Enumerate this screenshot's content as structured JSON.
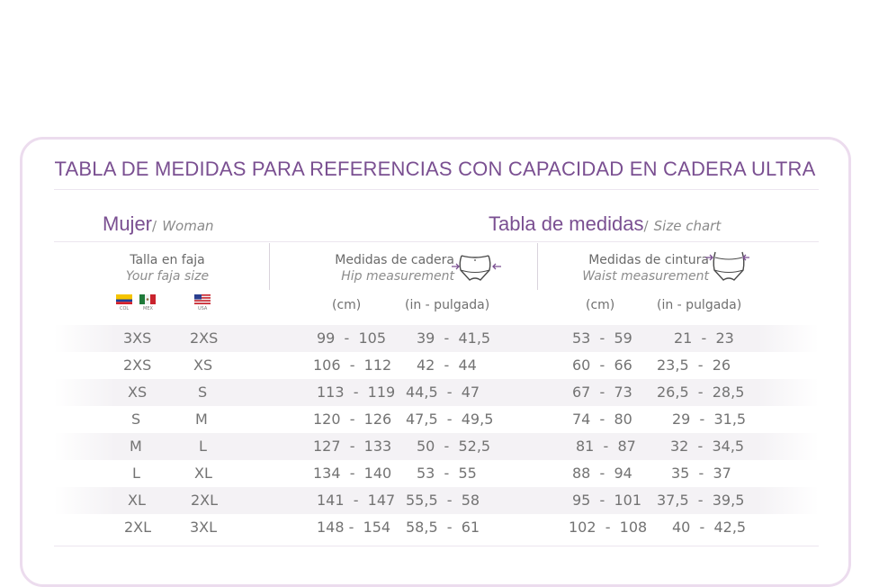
{
  "title": "TABLA DE MEDIDAS PARA REFERENCIAS CON CAPACIDAD EN CADERA ULTRA",
  "left_section": {
    "main": "Mujer",
    "sep": "/",
    "sub": "Woman"
  },
  "right_section": {
    "main": "Tabla de medidas",
    "sep": "/",
    "sub": "Size chart"
  },
  "columns": {
    "size": {
      "es": "Talla en faja",
      "en": "Your faja size"
    },
    "hip": {
      "es": "Medidas de cadera",
      "en": "Hip measurement"
    },
    "waist": {
      "es": "Medidas de cintura",
      "en": "Waist measurement"
    }
  },
  "flags": {
    "col": "COL",
    "mex": "MEX",
    "usa": "USA"
  },
  "units": {
    "hip_cm": "(cm)",
    "hip_in": "(in - pulgada)",
    "waist_cm": "(cm)",
    "waist_in": "(in - pulgada)"
  },
  "rows": [
    {
      "col": "3XS",
      "usa": "2XS",
      "hip_cm": "99  -  105",
      "hip_in": "39  -  41,5",
      "waist_cm": "53  -  59",
      "waist_in": "21  -  23"
    },
    {
      "col": "2XS",
      "usa": "XS",
      "hip_cm": "106  -  112",
      "hip_in": "42  -  44",
      "waist_cm": "60  -  66",
      "waist_in": "23,5  -  26"
    },
    {
      "col": "XS",
      "usa": "S",
      "hip_cm": "113  -  119",
      "hip_in": "44,5  -  47",
      "waist_cm": "67  -  73",
      "waist_in": "26,5  -  28,5"
    },
    {
      "col": "S",
      "usa": "M",
      "hip_cm": "120  -  126",
      "hip_in": "47,5  -  49,5",
      "waist_cm": "74  -  80",
      "waist_in": "29  -  31,5"
    },
    {
      "col": "M",
      "usa": "L",
      "hip_cm": "127  -  133",
      "hip_in": "50  -  52,5",
      "waist_cm": "81  -  87",
      "waist_in": "32  -  34,5"
    },
    {
      "col": "L",
      "usa": "XL",
      "hip_cm": "134  -  140",
      "hip_in": "53  -  55",
      "waist_cm": "88  -  94",
      "waist_in": "35  -  37"
    },
    {
      "col": "XL",
      "usa": "2XL",
      "hip_cm": "141  -  147",
      "hip_in": "55,5  -  58",
      "waist_cm": "95  -  101",
      "waist_in": "37,5  -  39,5"
    },
    {
      "col": "2XL",
      "usa": "3XL",
      "hip_cm": "148 -  154",
      "hip_in": "58,5  -  61",
      "waist_cm": "102  -  108",
      "waist_in": "40  -  42,5"
    }
  ],
  "colors": {
    "accent": "#7a4f91",
    "border": "#ecdcee",
    "row_alt": "#f4f2f5"
  }
}
